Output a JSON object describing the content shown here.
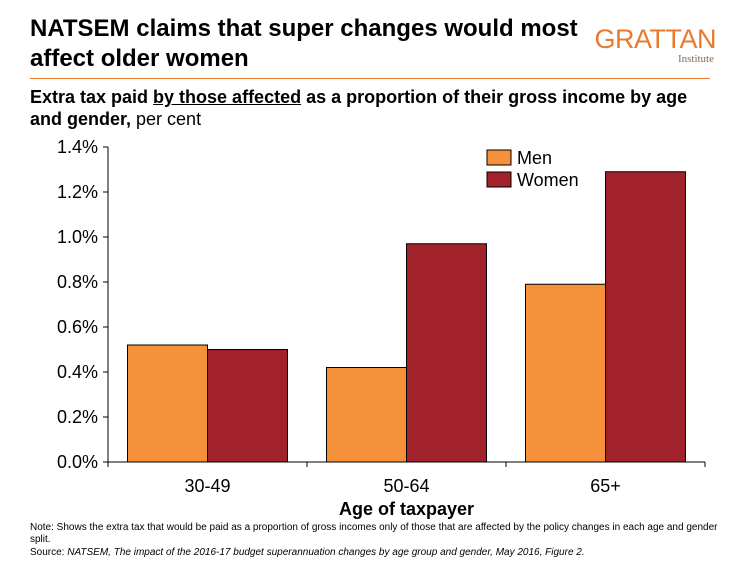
{
  "header": {
    "title": "NATSEM claims that super changes would most affect older women",
    "subtitle_part1": "Extra tax paid ",
    "subtitle_underlined": "by those affected",
    "subtitle_part2": " as a proportion of their gross income by age and gender,",
    "subtitle_unit": " per cent",
    "logo_main": "GRATTAN",
    "logo_sub": "Institute"
  },
  "colors": {
    "accent": "#e8792e",
    "men": "#f4913a",
    "women": "#a1222a"
  },
  "footer": {
    "note": "Note: Shows the extra tax that would be paid as a proportion of gross incomes only of those that are affected by the policy changes in each age and gender split.",
    "source_label": "Source: ",
    "source_text": "NATSEM, The impact of the 2016-17 budget superannuation changes by age group and gender, May 2016, Figure 2."
  },
  "chart_data": {
    "type": "bar",
    "categories": [
      "30-49",
      "50-64",
      "65+"
    ],
    "series": [
      {
        "name": "Men",
        "values": [
          0.52,
          0.42,
          0.79
        ]
      },
      {
        "name": "Women",
        "values": [
          0.5,
          0.97,
          1.29
        ]
      }
    ],
    "xlabel": "Age of taxpayer",
    "ylabel": "",
    "ylim": [
      0,
      1.4
    ],
    "yticks": [
      0,
      0.2,
      0.4,
      0.6,
      0.8,
      1.0,
      1.2,
      1.4
    ],
    "ytick_labels": [
      "0.0%",
      "0.2%",
      "0.4%",
      "0.6%",
      "0.8%",
      "1.0%",
      "1.2%",
      "1.4%"
    ],
    "grid": false,
    "legend": "top-right"
  }
}
